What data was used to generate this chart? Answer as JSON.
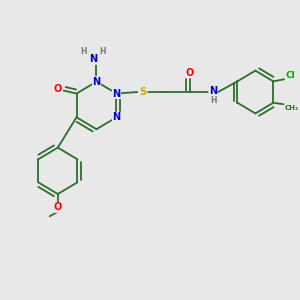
{
  "bg_color": "#e8e8e8",
  "atom_colors": {
    "N": "#0000cc",
    "O": "#ff0000",
    "S": "#ccaa00",
    "Cl": "#00aa00",
    "C": "#2d6e2d",
    "H": "#777777",
    "default": "#2d6e2d"
  },
  "font_size": 7.0,
  "bond_color": "#2d6e2d",
  "bond_width": 1.3
}
